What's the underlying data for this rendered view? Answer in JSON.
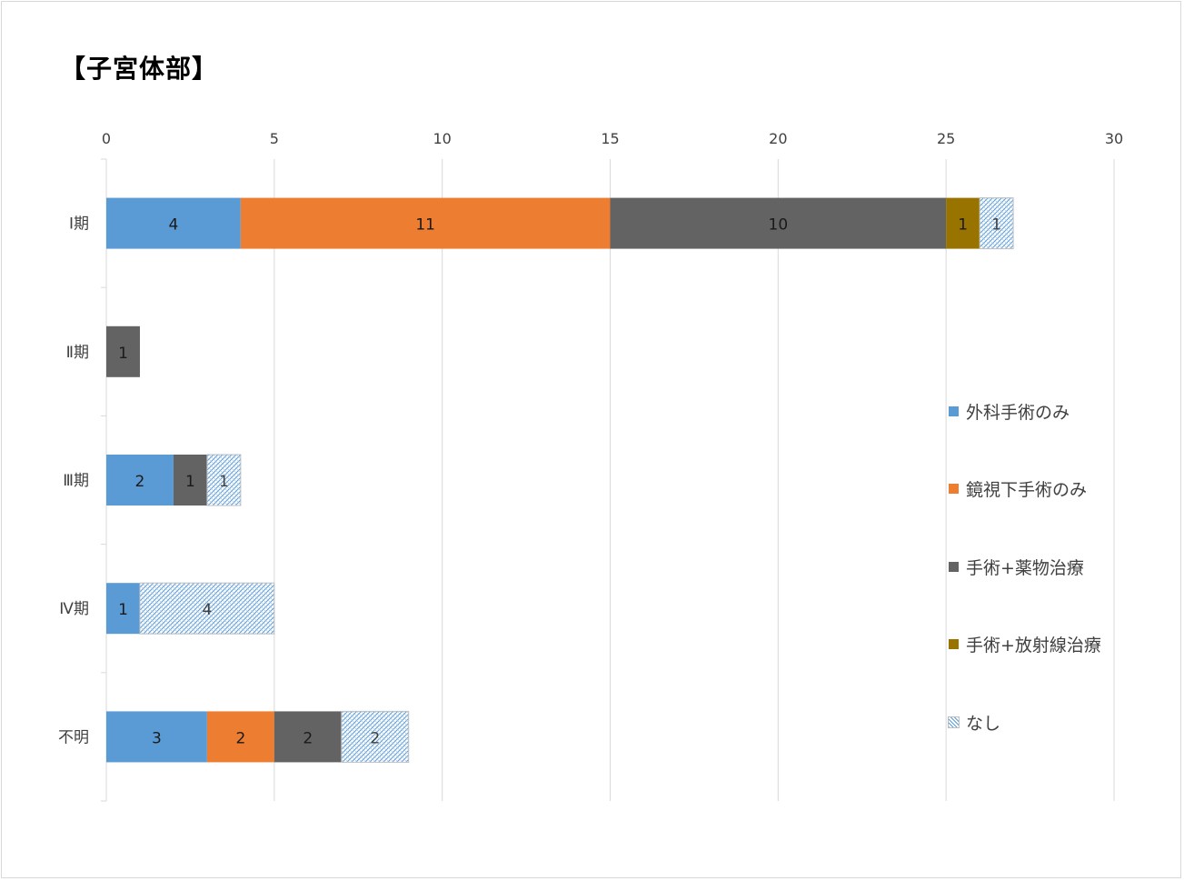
{
  "title": "【子宮体部】",
  "chart_data": {
    "type": "bar",
    "orientation": "horizontal",
    "stacked": true,
    "title": "【子宮体部】",
    "categories": [
      "Ⅰ期",
      "Ⅱ期",
      "Ⅲ期",
      "Ⅳ期",
      "不明"
    ],
    "series": [
      {
        "name": "外科手術のみ",
        "color": "#5b9bd5",
        "values": [
          4,
          0,
          2,
          1,
          3
        ]
      },
      {
        "name": "鏡視下手術のみ",
        "color": "#ed7d31",
        "values": [
          11,
          0,
          0,
          0,
          2
        ]
      },
      {
        "name": "手術+薬物治療",
        "color": "#636363",
        "values": [
          10,
          1,
          1,
          0,
          2
        ]
      },
      {
        "name": "手術+放射線治療",
        "color": "#997300",
        "values": [
          1,
          0,
          0,
          0,
          0
        ]
      },
      {
        "name": "なし",
        "color": "#9dc3e6",
        "pattern": "hatched",
        "values": [
          1,
          0,
          1,
          4,
          2
        ]
      }
    ],
    "xlim": [
      0,
      30
    ],
    "xticks": [
      0,
      5,
      10,
      15,
      20,
      25,
      30
    ],
    "x_axis_position": "top",
    "grid": true,
    "legend_position": "right",
    "data_labels": true
  }
}
